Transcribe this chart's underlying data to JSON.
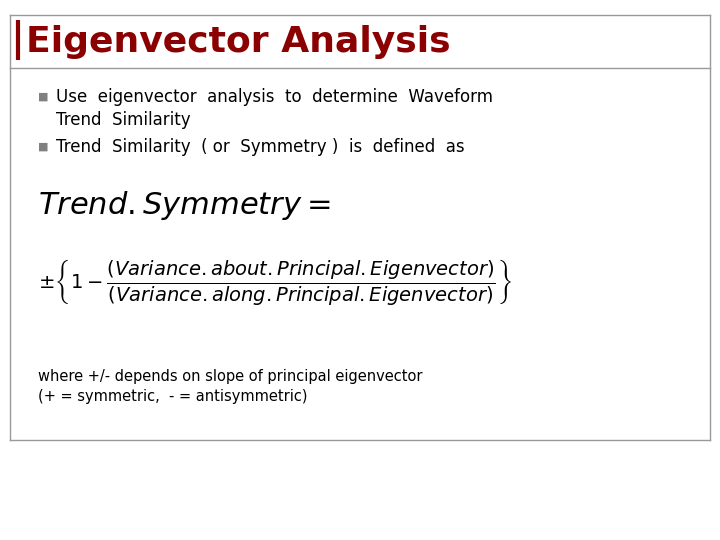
{
  "title": "Eigenvector Analysis",
  "title_color": "#8B0000",
  "title_fontsize": 26,
  "bullet1_line1": "Use  eigenvector  analysis  to  determine  Waveform",
  "bullet1_line2": "Trend  Similarity",
  "bullet2": "Trend  Similarity  ( or  Symmetry )  is  defined  as",
  "note_line1": "where +/- depends on slope of principal eigenvector",
  "note_line2": "(+ = symmetric,  - = antisymmetric)",
  "bg_color": "#FFFFFF",
  "text_color": "#000000",
  "bullet_color": "#808080",
  "border_color": "#999999",
  "body_fontsize": 12,
  "formula1_fontsize": 22,
  "formula2_fontsize": 14,
  "note_fontsize": 10.5
}
